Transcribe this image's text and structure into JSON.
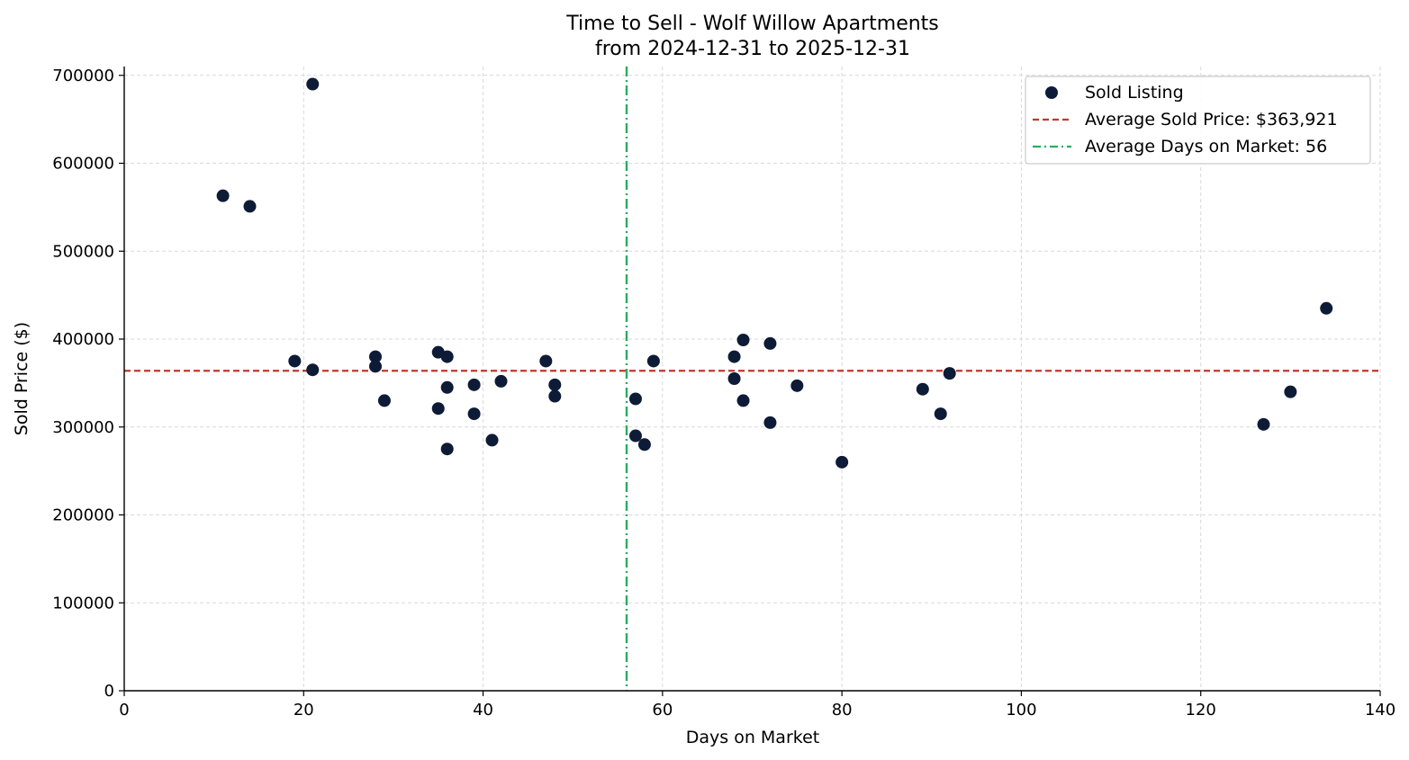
{
  "chart_data": {
    "type": "scatter",
    "title": "Time to Sell - Wolf Willow Apartments",
    "subtitle": "from 2024-12-31 to 2025-12-31",
    "xlabel": "Days on Market",
    "ylabel": "Sold Price ($)",
    "xlim": [
      0,
      140
    ],
    "ylim": [
      0,
      710000
    ],
    "xticks": [
      0,
      20,
      40,
      60,
      80,
      100,
      120,
      140
    ],
    "yticks": [
      0,
      100000,
      200000,
      300000,
      400000,
      500000,
      600000,
      700000
    ],
    "grid": true,
    "legend_position": "top-right",
    "series": [
      {
        "name": "Sold Listing",
        "color": "#0d1b36",
        "points": [
          [
            11,
            563000
          ],
          [
            14,
            551000
          ],
          [
            19,
            375000
          ],
          [
            21,
            690000
          ],
          [
            21,
            365000
          ],
          [
            28,
            380000
          ],
          [
            28,
            369000
          ],
          [
            29,
            330000
          ],
          [
            35,
            385000
          ],
          [
            35,
            321000
          ],
          [
            36,
            380000
          ],
          [
            36,
            345000
          ],
          [
            36,
            275000
          ],
          [
            39,
            348000
          ],
          [
            39,
            315000
          ],
          [
            41,
            285000
          ],
          [
            42,
            352000
          ],
          [
            47,
            375000
          ],
          [
            48,
            348000
          ],
          [
            48,
            335000
          ],
          [
            57,
            332000
          ],
          [
            57,
            290000
          ],
          [
            58,
            280000
          ],
          [
            59,
            375000
          ],
          [
            68,
            380000
          ],
          [
            68,
            355000
          ],
          [
            69,
            399000
          ],
          [
            69,
            330000
          ],
          [
            72,
            395000
          ],
          [
            72,
            305000
          ],
          [
            75,
            347000
          ],
          [
            80,
            260000
          ],
          [
            89,
            343000
          ],
          [
            91,
            315000
          ],
          [
            92,
            361000
          ],
          [
            127,
            303000
          ],
          [
            130,
            340000
          ],
          [
            134,
            435000
          ]
        ]
      }
    ],
    "reference_lines": {
      "avg_price": {
        "label": "Average Sold Price: $363,921",
        "value": 363921,
        "color": "#c0392b",
        "style": "dashed"
      },
      "avg_days": {
        "label": "Average Days on Market: 56",
        "value": 56,
        "color": "#27ae60",
        "style": "dashdot"
      }
    }
  }
}
